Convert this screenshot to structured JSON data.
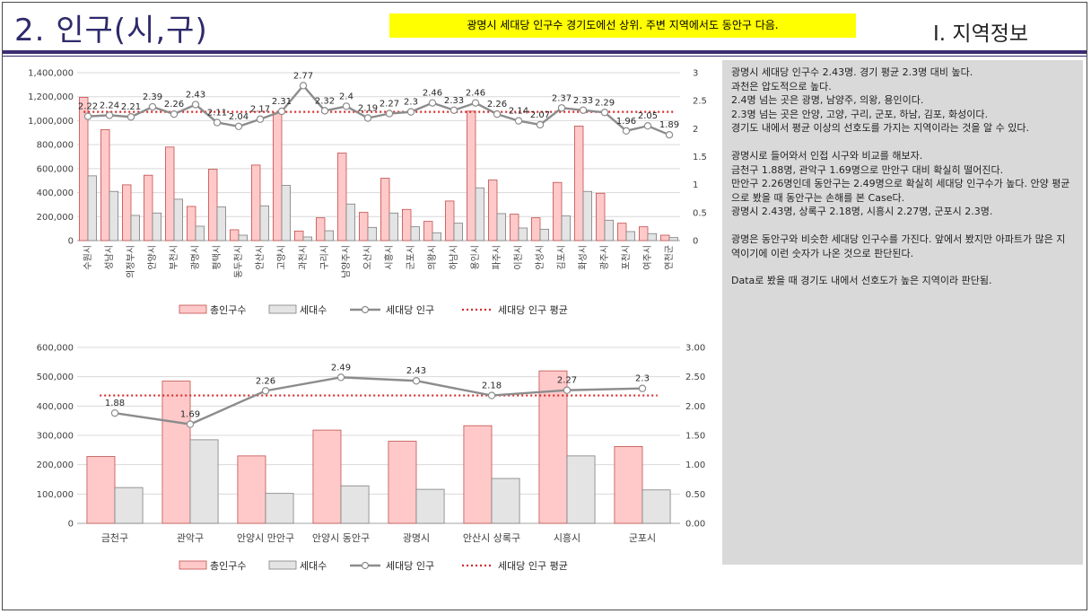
{
  "header": {
    "title": "2. 인구(시,구)",
    "banner": "광명시 세대당 인구수 경기도에선 상위. 주변 지역에서도 동안구 다음.",
    "section": "Ⅰ. 지역정보"
  },
  "colors": {
    "pop": "#ffc9c9",
    "hh": "#e4e4e4",
    "ratio": "#8c8c8c",
    "avg": "#d62a2a",
    "header": "#3b2d70",
    "banner": "#ffff00"
  },
  "notes": {
    "paragraphs": [
      [
        "광명시 세대당 인구수 2.43명. 경기 평균 2.3명 대비 높다.",
        "과천은 압도적으로 높다.",
        "2.4명 넘는 곳은 광명, 남양주, 의왕, 용인이다.",
        "2.3명 넘는 곳은 안양, 고양, 구리, 군포, 하남, 김포, 화성이다.",
        "경기도 내에서 평균 이상의 선호도를 가지는 지역이라는 것을 알 수 있다."
      ],
      [
        "광명시로 들어와서 인접 시구와 비교를 해보자.",
        "금천구 1.88명, 관악구 1.69명으로 만안구 대비 확실히 떨어진다.",
        "만안구 2.26명인데 동안구는 2.49명으로 확실히 세대당 인구수가 높다. 안양 평균으로 봤을 때 동안구는 손해를 본 Case다.",
        "광명시 2.43명, 상록구 2.18명, 시흥시 2.27명, 군포시 2.3명."
      ],
      [
        "광명은 동안구와 비슷한 세대당 인구수를 가진다. 앞에서 봤지만 아파트가 많은 지역이기에 이런 숫자가 나온 것으로 판단된다."
      ],
      [
        "Data로 봤을 때 경기도 내에서 선호도가 높은 지역이라 판단됨."
      ]
    ]
  },
  "chart_data": [
    {
      "type": "bar",
      "categories": [
        "수원시",
        "성남시",
        "의정부시",
        "안양시",
        "부천시",
        "광명시",
        "평택시",
        "동두천시",
        "안산시",
        "고양시",
        "과천시",
        "구리시",
        "남양주시",
        "오산시",
        "시흥시",
        "군포시",
        "의왕시",
        "하남시",
        "용인시",
        "파주시",
        "이천시",
        "안성시",
        "김포시",
        "화성시",
        "광주시",
        "포천시",
        "여주시",
        "연천군"
      ],
      "series": [
        {
          "name": "총인구수",
          "kind": "bar",
          "axis": "left",
          "values": [
            1195000,
            925000,
            465000,
            545000,
            780000,
            285000,
            595000,
            90000,
            630000,
            1065000,
            80000,
            190000,
            730000,
            235000,
            520000,
            260000,
            160000,
            330000,
            1080000,
            505000,
            220000,
            190000,
            485000,
            955000,
            395000,
            145000,
            115000,
            45000
          ]
        },
        {
          "name": "세대수",
          "kind": "bar",
          "axis": "left",
          "values": [
            540000,
            410000,
            210000,
            230000,
            345000,
            120000,
            280000,
            45000,
            290000,
            460000,
            30000,
            82000,
            305000,
            110000,
            230000,
            115000,
            65000,
            145000,
            440000,
            225000,
            105000,
            95000,
            205000,
            410000,
            170000,
            75000,
            58000,
            25000
          ]
        },
        {
          "name": "세대당 인구",
          "kind": "line",
          "axis": "right",
          "values": [
            2.22,
            2.24,
            2.21,
            2.39,
            2.26,
            2.43,
            2.11,
            2.04,
            2.17,
            2.31,
            2.77,
            2.32,
            2.4,
            2.19,
            2.27,
            2.3,
            2.46,
            2.33,
            2.46,
            2.26,
            2.14,
            2.07,
            2.37,
            2.33,
            2.29,
            1.96,
            2.05,
            1.89
          ]
        },
        {
          "name": "세대당 인구 평균",
          "kind": "avg",
          "axis": "right",
          "value": 2.3
        }
      ],
      "left_axis": {
        "min": 0,
        "max": 1400000,
        "step": 200000,
        "ticks": [
          "0",
          "200,000",
          "400,000",
          "600,000",
          "800,000",
          "1,000,000",
          "1,200,000",
          "1,400,000"
        ]
      },
      "right_axis": {
        "min": 0,
        "max": 3,
        "step": 0.5,
        "ticks": [
          "0",
          "0.5",
          "1",
          "1.5",
          "2",
          "2.5",
          "3"
        ]
      },
      "legend": "bottom",
      "grid": true
    },
    {
      "type": "bar",
      "categories": [
        "금천구",
        "관악구",
        "안양시 만안구",
        "안양시 동안구",
        "광명시",
        "안산시 상록구",
        "시흥시",
        "군포시"
      ],
      "series": [
        {
          "name": "총인구수",
          "kind": "bar",
          "axis": "left",
          "values": [
            228000,
            485000,
            230000,
            318000,
            280000,
            333000,
            520000,
            262000
          ]
        },
        {
          "name": "세대수",
          "kind": "bar",
          "axis": "left",
          "values": [
            122000,
            285000,
            102000,
            128000,
            116000,
            153000,
            230000,
            114000
          ]
        },
        {
          "name": "세대당 인구",
          "kind": "line",
          "axis": "right",
          "values": [
            1.88,
            1.69,
            2.26,
            2.49,
            2.43,
            2.18,
            2.27,
            2.3
          ]
        },
        {
          "name": "세대당 인구 평균",
          "kind": "avg",
          "axis": "right",
          "value": 2.18
        }
      ],
      "left_axis": {
        "min": 0,
        "max": 600000,
        "step": 100000,
        "ticks": [
          "0",
          "100,000",
          "200,000",
          "300,000",
          "400,000",
          "500,000",
          "600,000"
        ]
      },
      "right_axis": {
        "min": 0,
        "max": 3,
        "step": 0.5,
        "ticks": [
          "0.00",
          "0.50",
          "1.00",
          "1.50",
          "2.00",
          "2.50",
          "3.00"
        ]
      },
      "legend": "bottom",
      "grid": true
    }
  ]
}
